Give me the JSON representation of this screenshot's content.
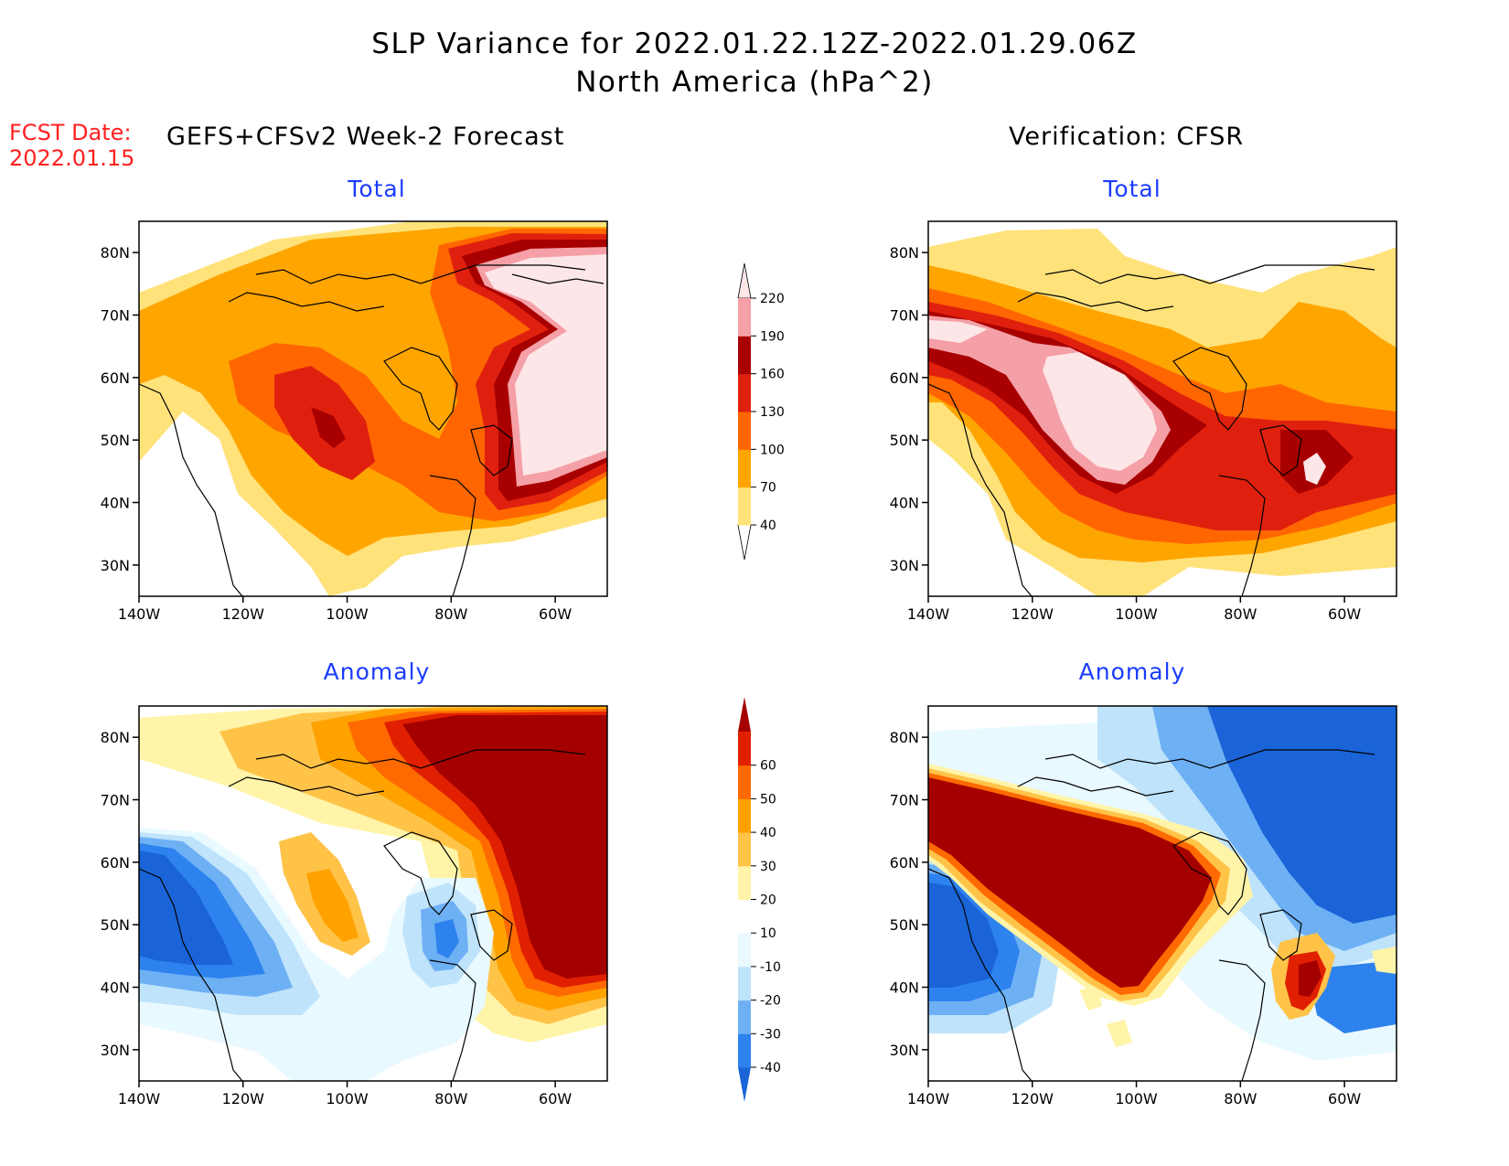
{
  "header": {
    "title_line1": "SLP Variance for 2022.01.22.12Z-2022.01.29.06Z",
    "title_line2": "North America (hPa^2)",
    "fcst_label": "FCST Date:",
    "fcst_date": "2022.01.15",
    "left_column_title": "GEFS+CFSv2 Week-2 Forecast",
    "right_column_title": "Verification: CFSR"
  },
  "panels": [
    {
      "id": "forecast-total",
      "title": "Total",
      "kind": "total"
    },
    {
      "id": "verification-total",
      "title": "Total",
      "kind": "total"
    },
    {
      "id": "forecast-anomaly",
      "title": "Anomaly",
      "kind": "anomaly"
    },
    {
      "id": "verification-anomaly",
      "title": "Anomaly",
      "kind": "anomaly"
    }
  ],
  "map_axes": {
    "lon_ticks": [
      "140W",
      "120W",
      "100W",
      "80W",
      "60W"
    ],
    "lat_ticks": [
      "80N",
      "70N",
      "60N",
      "50N",
      "40N",
      "30N"
    ],
    "lon_range": [
      -140,
      -50
    ],
    "lat_range": [
      25,
      85
    ]
  },
  "colorbars": {
    "total": {
      "labels": [
        "40",
        "70",
        "100",
        "130",
        "160",
        "190",
        "220"
      ],
      "colors": [
        "#ffffff",
        "#ffe27a",
        "#ffa500",
        "#ff6600",
        "#e0200f",
        "#a80000",
        "#f4a0a6",
        "#fde6e8"
      ]
    },
    "anomaly": {
      "labels": [
        "-40",
        "-30",
        "-20",
        "-10",
        "10",
        "20",
        "30",
        "40",
        "50",
        "60"
      ],
      "colors": [
        "#1a64d8",
        "#2d82ee",
        "#6eb0f4",
        "#bfe3fb",
        "#e8f9ff",
        "#ffffff",
        "#fff4a8",
        "#ffc348",
        "#ffa200",
        "#ff6a00",
        "#e02000",
        "#a50000"
      ]
    }
  }
}
